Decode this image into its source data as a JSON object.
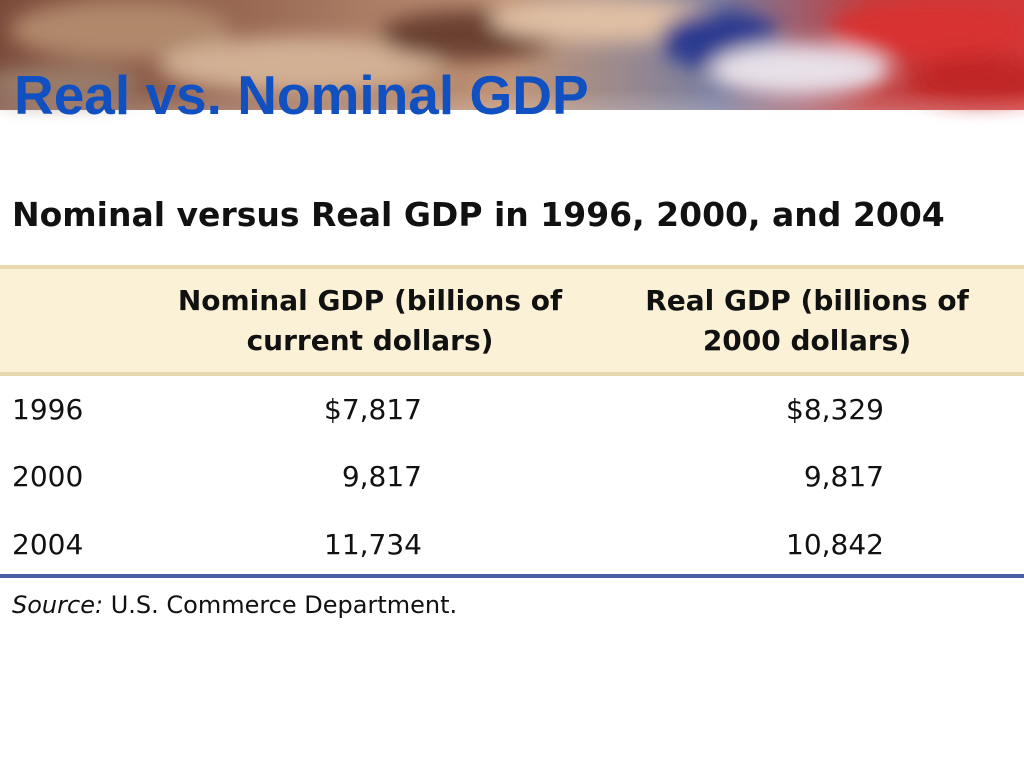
{
  "slide": {
    "title": "Real vs. Nominal GDP"
  },
  "table": {
    "title": "Nominal versus Real GDP in 1996, 2000, and 2004",
    "headers": {
      "year": "",
      "nominal": "Nominal GDP (billions of current dollars)",
      "real": "Real GDP (billions of 2000 dollars)"
    },
    "rows": [
      {
        "year": "1996",
        "nominal": "$7,817",
        "real": "$8,329"
      },
      {
        "year": "2000",
        "nominal": "9,817",
        "real": "9,817"
      },
      {
        "year": "2004",
        "nominal": "11,734",
        "real": "10,842"
      }
    ]
  },
  "source": {
    "label": "Source:",
    "text": "U.S. Commerce Department."
  },
  "colors": {
    "title_blue": "#1050c0",
    "header_background": "#fbf1d6",
    "rule_blue": "#4a5ea8"
  }
}
